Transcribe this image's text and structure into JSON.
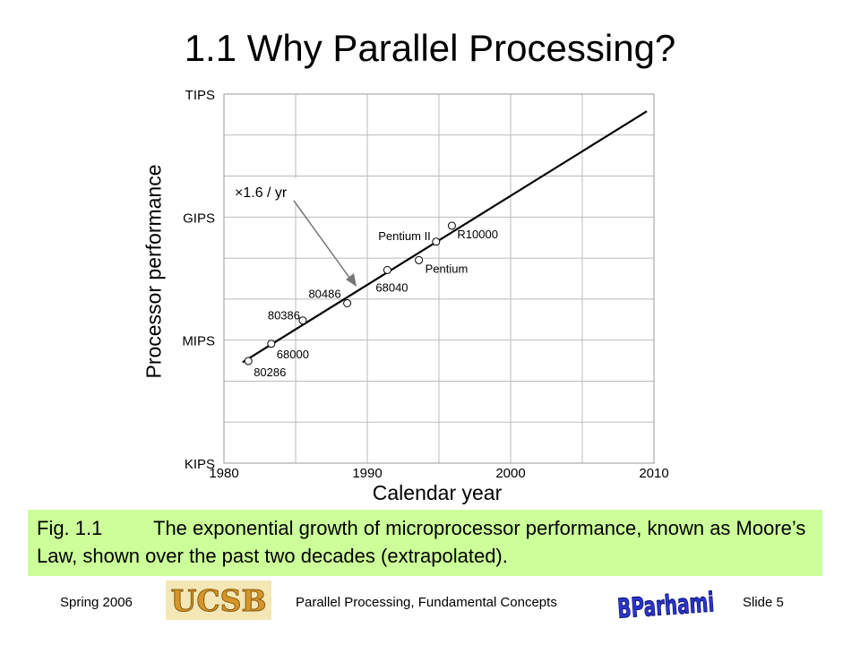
{
  "slide": {
    "title": "1.1  Why Parallel Processing?",
    "caption_fig": "Fig. 1.1",
    "caption_text": "The exponential growth of microprocessor performance, known as Moore’s Law, shown over the past two decades (extrapolated).",
    "footer_left": "Spring  2006",
    "footer_center": "Parallel Processing, Fundamental Concepts",
    "footer_right": "Slide 5",
    "logo_text": "UCSB",
    "signature_text": "B Parhami"
  },
  "chart_data": {
    "type": "scatter",
    "title": "",
    "xlabel": "Calendar year",
    "ylabel": "Processor performance",
    "xlim": [
      1980,
      2010
    ],
    "x_ticks": [
      "1980",
      "1990",
      "2000",
      "2010"
    ],
    "y_scale": "log",
    "y_ticks": [
      "KIPS",
      "MIPS",
      "GIPS",
      "TIPS"
    ],
    "grid": true,
    "points": [
      {
        "label": "80286",
        "x": 1981.7,
        "y": 0.83
      },
      {
        "label": "68000",
        "x": 1983.3,
        "y": 0.97
      },
      {
        "label": "80386",
        "x": 1985.5,
        "y": 1.16
      },
      {
        "label": "80486",
        "x": 1988.6,
        "y": 1.3
      },
      {
        "label": "68040",
        "x": 1991.4,
        "y": 1.57
      },
      {
        "label": "Pentium",
        "x": 1993.6,
        "y": 1.65
      },
      {
        "label": "Pentium II",
        "x": 1994.8,
        "y": 1.8
      },
      {
        "label": "R10000",
        "x": 1995.9,
        "y": 1.93
      }
    ],
    "trend_line": {
      "x": [
        1981.3,
        2009.5
      ],
      "y": [
        0.82,
        2.86
      ]
    },
    "annotation": "×1.6 / yr"
  }
}
